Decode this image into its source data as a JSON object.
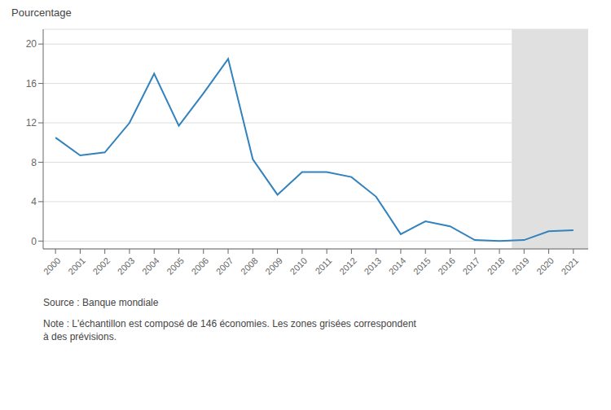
{
  "chart_data": {
    "type": "line",
    "y_label": "Pourcentage",
    "x": [
      2000,
      2001,
      2002,
      2003,
      2004,
      2005,
      2006,
      2007,
      2008,
      2009,
      2010,
      2011,
      2012,
      2013,
      2014,
      2015,
      2016,
      2017,
      2018,
      2019,
      2020,
      2021
    ],
    "values": [
      10.5,
      8.7,
      9.0,
      12.0,
      17.0,
      11.7,
      15.0,
      18.5,
      8.3,
      4.7,
      7.0,
      7.0,
      6.5,
      4.5,
      0.7,
      2.0,
      1.5,
      0.1,
      0.0,
      0.1,
      1.0,
      1.1
    ],
    "xlim": [
      1999.5,
      2021.6
    ],
    "xticks": [
      2000,
      2001,
      2002,
      2003,
      2004,
      2005,
      2006,
      2007,
      2008,
      2009,
      2010,
      2011,
      2012,
      2013,
      2014,
      2015,
      2016,
      2017,
      2018,
      2019,
      2020,
      2021
    ],
    "ylim": [
      -0.8,
      21.5
    ],
    "yticks": [
      0,
      4,
      8,
      12,
      16,
      20
    ],
    "grid": true,
    "shaded": {
      "x": [
        2018.5,
        2021.6
      ],
      "color": "#e0e0e0"
    },
    "annotations": [
      "Source : Banque mondiale",
      "Note : L'échantillon est composé de 146 économies. Les zones grisées correspondent\nà des prévisions."
    ]
  }
}
